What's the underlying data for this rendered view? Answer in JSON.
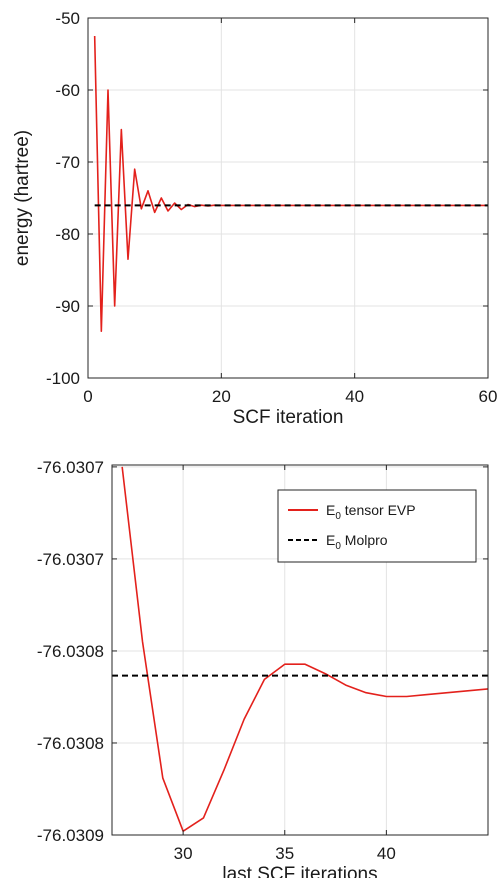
{
  "chart_data": [
    {
      "type": "line",
      "title": "",
      "xlabel": "SCF iteration",
      "ylabel": "energy (hartree)",
      "xlim": [
        0,
        60
      ],
      "ylim": [
        -100,
        -50
      ],
      "xticks": [
        0,
        20,
        40,
        60
      ],
      "xtick_labels": [
        "0",
        "20",
        "40",
        "60"
      ],
      "yticks": [
        -100,
        -90,
        -80,
        -70,
        -60,
        -50
      ],
      "ytick_labels": [
        "-100",
        "-90",
        "-80",
        "-70",
        "-60",
        "-50"
      ],
      "grid": true,
      "legend": false,
      "series": [
        {
          "color": "#e3211c",
          "style": "solid",
          "x": [
            1,
            2,
            3,
            4,
            5,
            6,
            7,
            8,
            9,
            10,
            11,
            12,
            13,
            14,
            15,
            16,
            17,
            18,
            19,
            20,
            21,
            22,
            23,
            24,
            25,
            26,
            27,
            28,
            29,
            30,
            31,
            32,
            33,
            34,
            35,
            36,
            37,
            38,
            39,
            40,
            41,
            42,
            43,
            44,
            45,
            46,
            47,
            48,
            49,
            50,
            51,
            52,
            53,
            54,
            55,
            56,
            57,
            58,
            59,
            60
          ],
          "y": [
            -52.5,
            -93.5,
            -60.0,
            -90.0,
            -65.5,
            -83.5,
            -71.0,
            -76.5,
            -74.0,
            -77.0,
            -75.0,
            -76.8,
            -75.7,
            -76.6,
            -75.9,
            -76.2,
            -76.0,
            -76.1,
            -76.0,
            -76.03,
            -76.03,
            -76.03,
            -76.03,
            -76.03,
            -76.03,
            -76.03,
            -76.03,
            -76.03,
            -76.03,
            -76.03,
            -76.03,
            -76.03,
            -76.03,
            -76.03,
            -76.03,
            -76.03,
            -76.03,
            -76.03,
            -76.03,
            -76.03,
            -76.03,
            -76.03,
            -76.03,
            -76.03,
            -76.03,
            -76.03,
            -76.03,
            -76.03,
            -76.03,
            -76.03,
            -76.03,
            -76.03,
            -76.03,
            -76.03,
            -76.03,
            -76.03,
            -76.03,
            -76.03,
            -76.03,
            -76.03
          ]
        },
        {
          "color": "#000000",
          "style": "dashed",
          "x": [
            1,
            60
          ],
          "y": [
            -76.0308,
            -76.0308
          ]
        }
      ]
    },
    {
      "type": "line",
      "title": "",
      "xlabel": "last SCF iterations",
      "ylabel": "",
      "xlim": [
        26.5,
        45
      ],
      "ylim": [
        -76.03089,
        -76.030695
      ],
      "xticks": [
        30,
        35,
        40
      ],
      "xtick_labels": [
        "30",
        "35",
        "40"
      ],
      "yticks": [
        -76.03089,
        -76.0308415,
        -76.030793,
        -76.0307445,
        -76.030696
      ],
      "ytick_labels": [
        "-76.0309",
        "-76.0308",
        "-76.0308",
        "-76.0307",
        "-76.0307"
      ],
      "grid": true,
      "legend": "top-right",
      "series": [
        {
          "name_main": "E",
          "name_sub": "0",
          "name_rest": " tensor EVP",
          "color": "#e3211c",
          "style": "solid",
          "x": [
            27,
            28,
            29,
            30,
            31,
            32,
            33,
            34,
            35,
            36,
            37,
            38,
            39,
            40,
            41,
            42,
            43,
            44,
            45
          ],
          "y": [
            -76.030696,
            -76.030788,
            -76.03086,
            -76.030888,
            -76.030881,
            -76.030856,
            -76.030829,
            -76.030808,
            -76.0308,
            -76.0308,
            -76.030805,
            -76.030811,
            -76.030815,
            -76.030817,
            -76.030817,
            -76.030816,
            -76.030815,
            -76.030814,
            -76.030813
          ]
        },
        {
          "name_main": "E",
          "name_sub": "0",
          "name_rest": " Molpro",
          "color": "#000000",
          "style": "dashed",
          "x": [
            26.5,
            45
          ],
          "y": [
            -76.030806,
            -76.030806
          ]
        }
      ]
    }
  ]
}
